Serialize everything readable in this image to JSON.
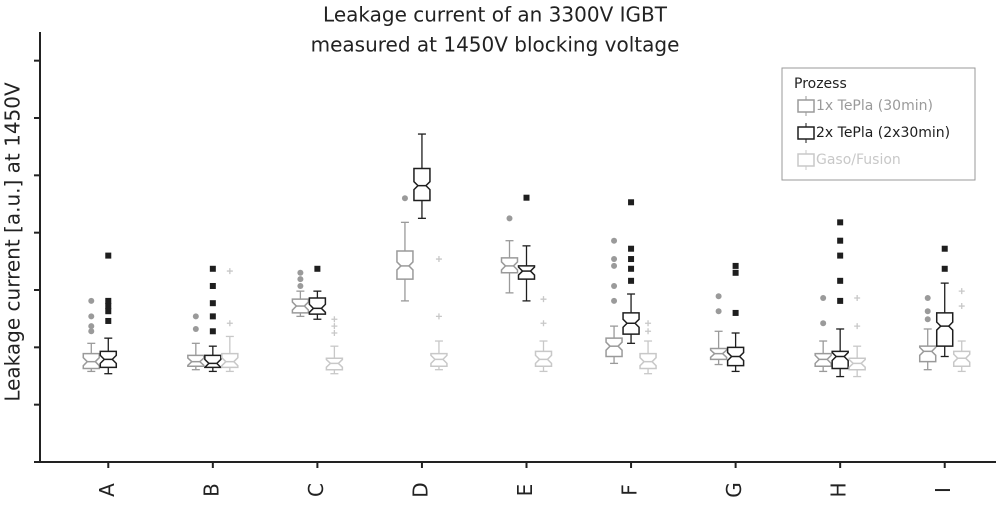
{
  "chart_data": {
    "type": "boxplot",
    "title": [
      "Leakage current of an 3300V IGBT",
      "measured at 1450V blocking voltage"
    ],
    "y_label": "Leakage current [a.u.] at 1450V",
    "categories": [
      "A",
      "B",
      "C",
      "D",
      "E",
      "F",
      "G",
      "H",
      "I"
    ],
    "ylim": [
      0,
      7.5
    ],
    "yticks": [
      0,
      1,
      2,
      3,
      4,
      5,
      6,
      7
    ],
    "legend": {
      "title": "Prozess",
      "position": "upper right"
    },
    "series": [
      {
        "name": "1x TePla (30min)",
        "color": "#9a9a9a",
        "marker": "circle",
        "boxes": [
          {
            "min": 1.58,
            "q1": 1.63,
            "median": 1.75,
            "q3": 1.89,
            "max": 2.07,
            "outliers": [
              2.81,
              2.54,
              2.37,
              2.28
            ]
          },
          {
            "min": 1.61,
            "q1": 1.67,
            "median": 1.75,
            "q3": 1.86,
            "max": 2.07,
            "outliers": [
              2.54,
              2.32
            ]
          },
          {
            "min": 2.54,
            "q1": 2.6,
            "median": 2.72,
            "q3": 2.84,
            "max": 2.98,
            "outliers": [
              3.3,
              3.19,
              3.07
            ]
          },
          {
            "min": 2.81,
            "q1": 3.19,
            "median": 3.42,
            "q3": 3.68,
            "max": 4.18,
            "outliers": [
              4.6
            ]
          },
          {
            "min": 2.95,
            "q1": 3.3,
            "median": 3.42,
            "q3": 3.56,
            "max": 3.86,
            "outliers": [
              4.25
            ]
          },
          {
            "min": 1.72,
            "q1": 1.84,
            "median": 2.02,
            "q3": 2.16,
            "max": 2.37,
            "outliers": [
              3.86,
              3.54,
              3.42,
              3.07,
              2.81
            ]
          },
          {
            "min": 1.7,
            "q1": 1.79,
            "median": 1.89,
            "q3": 1.98,
            "max": 2.28,
            "outliers": [
              2.89,
              2.63
            ]
          },
          {
            "min": 1.58,
            "q1": 1.67,
            "median": 1.79,
            "q3": 1.89,
            "max": 2.11,
            "outliers": [
              2.86,
              2.42
            ]
          },
          {
            "min": 1.61,
            "q1": 1.75,
            "median": 1.93,
            "q3": 2.02,
            "max": 2.32,
            "outliers": [
              2.86,
              2.63,
              2.49
            ]
          }
        ]
      },
      {
        "name": "2x TePla (2x30min)",
        "color": "#1e1e1e",
        "marker": "square",
        "boxes": [
          {
            "min": 1.54,
            "q1": 1.65,
            "median": 1.79,
            "q3": 1.93,
            "max": 2.16,
            "outliers": [
              3.6,
              2.81,
              2.72,
              2.63,
              2.46
            ]
          },
          {
            "min": 1.58,
            "q1": 1.65,
            "median": 1.72,
            "q3": 1.86,
            "max": 2.02,
            "outliers": [
              3.37,
              3.07,
              2.77,
              2.54,
              2.28
            ]
          },
          {
            "min": 2.49,
            "q1": 2.58,
            "median": 2.68,
            "q3": 2.86,
            "max": 2.98,
            "outliers": [
              3.37
            ]
          },
          {
            "min": 4.25,
            "q1": 4.56,
            "median": 4.82,
            "q3": 5.12,
            "max": 5.72,
            "outliers": []
          },
          {
            "min": 2.81,
            "q1": 3.19,
            "median": 3.33,
            "q3": 3.42,
            "max": 3.77,
            "outliers": [
              4.61
            ]
          },
          {
            "min": 2.07,
            "q1": 2.23,
            "median": 2.42,
            "q3": 2.6,
            "max": 2.93,
            "outliers": [
              4.53,
              3.72,
              3.54,
              3.37,
              3.16
            ]
          },
          {
            "min": 1.58,
            "q1": 1.68,
            "median": 1.84,
            "q3": 2.0,
            "max": 2.25,
            "outliers": [
              3.42,
              3.3,
              2.6
            ]
          },
          {
            "min": 1.49,
            "q1": 1.63,
            "median": 1.84,
            "q3": 1.93,
            "max": 2.32,
            "outliers": [
              4.18,
              3.86,
              3.6,
              3.16,
              2.81
            ]
          },
          {
            "min": 1.84,
            "q1": 2.02,
            "median": 2.37,
            "q3": 2.6,
            "max": 3.12,
            "outliers": [
              3.72,
              3.37
            ]
          }
        ]
      },
      {
        "name": "Gaso/Fusion",
        "color": "#c8c8c8",
        "marker": "plus",
        "boxes": [
          null,
          {
            "min": 1.58,
            "q1": 1.65,
            "median": 1.75,
            "q3": 1.89,
            "max": 2.19,
            "outliers": [
              3.33,
              2.42
            ]
          },
          {
            "min": 1.54,
            "q1": 1.61,
            "median": 1.72,
            "q3": 1.81,
            "max": 2.02,
            "outliers": [
              2.49,
              2.37,
              2.25
            ]
          },
          {
            "min": 1.61,
            "q1": 1.67,
            "median": 1.79,
            "q3": 1.89,
            "max": 2.11,
            "outliers": [
              3.54,
              2.54
            ]
          },
          {
            "min": 1.58,
            "q1": 1.67,
            "median": 1.79,
            "q3": 1.93,
            "max": 2.11,
            "outliers": [
              2.84,
              2.42
            ]
          },
          {
            "min": 1.54,
            "q1": 1.63,
            "median": 1.75,
            "q3": 1.89,
            "max": 2.11,
            "outliers": [
              2.42,
              2.28
            ]
          },
          null,
          {
            "min": 1.49,
            "q1": 1.61,
            "median": 1.72,
            "q3": 1.81,
            "max": 2.02,
            "outliers": [
              2.86,
              2.37
            ]
          },
          {
            "min": 1.58,
            "q1": 1.67,
            "median": 1.81,
            "q3": 1.93,
            "max": 2.11,
            "outliers": [
              2.98,
              2.72
            ]
          }
        ]
      }
    ]
  }
}
